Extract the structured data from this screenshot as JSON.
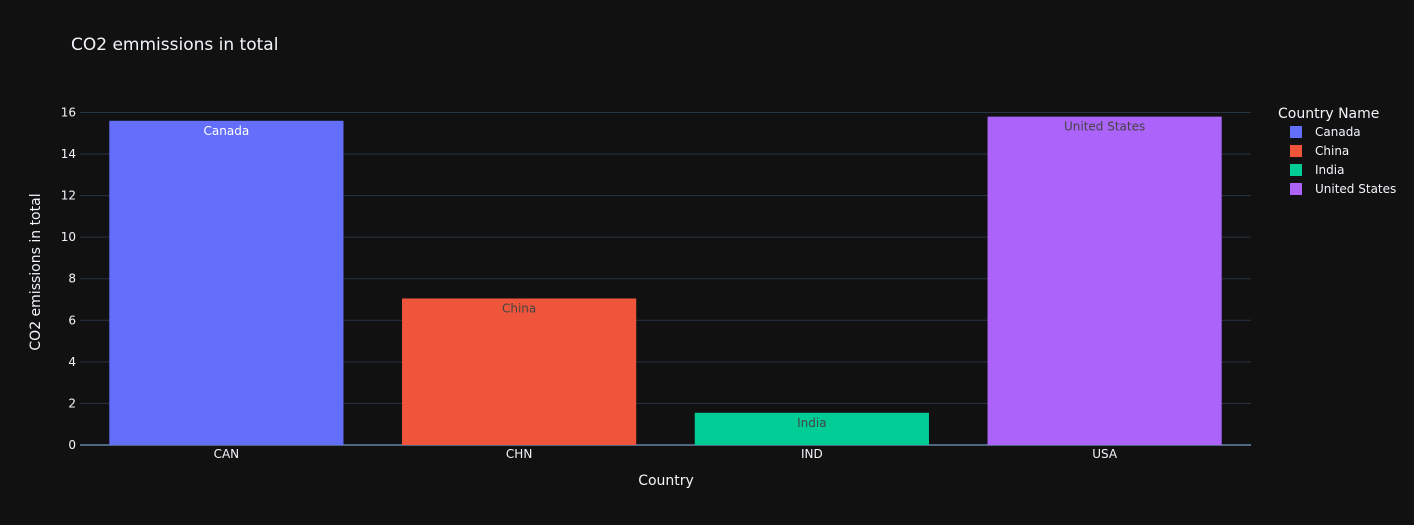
{
  "chart_data": {
    "type": "bar",
    "title": "CO2 emmissions in total",
    "xlabel": "Country",
    "ylabel": "CO2 emissions in total",
    "categories": [
      "CAN",
      "CHN",
      "IND",
      "USA"
    ],
    "ylim": [
      0,
      16.6
    ],
    "yticks": [
      0,
      2,
      4,
      6,
      8,
      10,
      12,
      14,
      16
    ],
    "grid": true,
    "legend": {
      "title": "Country Name",
      "position": "right"
    },
    "series": [
      {
        "name": "Canada",
        "category": "CAN",
        "value": 15.6,
        "label": "Canada",
        "color": "#636efa",
        "label_color": "#ffffff"
      },
      {
        "name": "China",
        "category": "CHN",
        "value": 7.05,
        "label": "China",
        "color": "#ef553b",
        "label_color": "#444444"
      },
      {
        "name": "India",
        "category": "IND",
        "value": 1.55,
        "label": "India",
        "color": "#00cc96",
        "label_color": "#444444"
      },
      {
        "name": "United States",
        "category": "USA",
        "value": 15.8,
        "label": "United States",
        "color": "#ab63fa",
        "label_color": "#444444"
      }
    ],
    "colors": {
      "background": "#111111",
      "grid": "#283442",
      "zeroline": "#506784",
      "text": "#f2f5fa"
    }
  }
}
